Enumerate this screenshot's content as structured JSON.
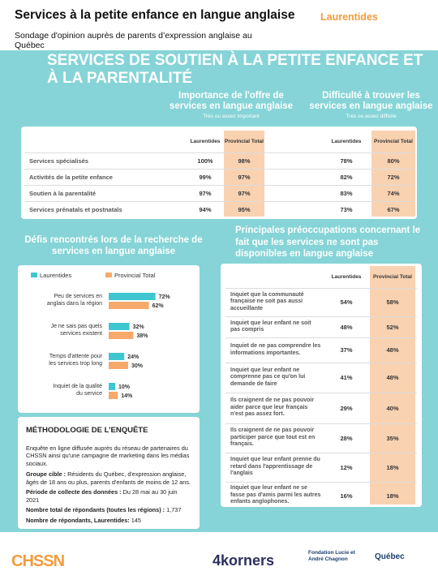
{
  "header": {
    "title": "Services à la petite enfance en langue anglaise",
    "region": "Laurentides",
    "subtitle": "Sondage d'opinion auprès de parents d’expression anglaise au Québec"
  },
  "banner": "SERVICES DE SOUTIEN À LA PETITE ENFANCE ET À LA PARENTALITÉ",
  "services_table": {
    "importance_title": "Importance de l'offre de services en langue anglaise",
    "importance_note": "Très ou assez important",
    "difficulty_title": "Difficulté à trouver les services en langue anglaise",
    "difficulty_note": "Très ou assez difficile",
    "columns": [
      "Laurentides",
      "Provincial Total"
    ],
    "rows": [
      {
        "label": "Services spécialisés",
        "importance": [
          "100%",
          "98%"
        ],
        "difficulty": [
          "78%",
          "80%"
        ]
      },
      {
        "label": "Activités de la petite enfance",
        "importance": [
          "99%",
          "97%"
        ],
        "difficulty": [
          "82%",
          "72%"
        ]
      },
      {
        "label": "Soutien à la parentalité",
        "importance": [
          "97%",
          "97%"
        ],
        "difficulty": [
          "83%",
          "74%"
        ]
      },
      {
        "label": "Services prénatals et postnatals",
        "importance": [
          "94%",
          "95%"
        ],
        "difficulty": [
          "73%",
          "67%"
        ]
      }
    ]
  },
  "challenges_chart": {
    "type": "bar",
    "title": "Défis rencontrés lors de la recherche de services en langue anglaise",
    "categories": [
      "Peu de services en anglais dans la région",
      "Je ne sais pas quels services existent",
      "Temps d'attente pour les services trop long",
      "Inquiet de la qualité du service"
    ],
    "series": [
      {
        "name": "Laurentides",
        "color": "#3ec6d1",
        "values": [
          72,
          32,
          24,
          10
        ],
        "value_labels": [
          "72%",
          "32%",
          "24%",
          "10%"
        ]
      },
      {
        "name": "Provincial Total",
        "color": "#f7a96b",
        "values": [
          62,
          38,
          30,
          14
        ],
        "value_labels": [
          "62%",
          "38%",
          "30%",
          "14%"
        ]
      }
    ]
  },
  "concerns_table": {
    "title": "Principales préoccupations concernant le fait que les services ne sont pas disponibles en langue anglaise",
    "columns": [
      "Laurentides",
      "Provincial Total"
    ],
    "rows": [
      {
        "label": "Inquiet que la communauté française ne soit pas aussi accueillante",
        "values": [
          "54%",
          "58%"
        ]
      },
      {
        "label": "Inquiet que leur enfant ne soit pas compris",
        "values": [
          "48%",
          "52%"
        ]
      },
      {
        "label": "Inquiet de ne pas comprendre les informations importantes.",
        "values": [
          "37%",
          "48%"
        ]
      },
      {
        "label": "Inquiet que leur enfant ne comprenne pas ce qu'on lui demande de faire",
        "values": [
          "41%",
          "48%"
        ]
      },
      {
        "label": "Ils craignent de ne pas pouvoir aider parce que leur français n'est pas assez fort.",
        "values": [
          "29%",
          "40%"
        ]
      },
      {
        "label": "Ils craignent de ne pas pouvoir participer parce que tout est en français.",
        "values": [
          "28%",
          "35%"
        ]
      },
      {
        "label": "Inquiet que leur enfant prenne du retard dans l'apprentissage de l'anglais",
        "values": [
          "12%",
          "18%"
        ]
      },
      {
        "label": "Inquiet que leur enfant ne se fasse pas d'amis parmi les autres enfants anglophones.",
        "values": [
          "16%",
          "18%"
        ]
      }
    ]
  },
  "methodology": {
    "title": "MÉTHODOLOGIE DE L’ENQUÊTE",
    "intro": "Enquête en ligne diffusée auprès du réseau de partenaires du CHSSN ainsi qu'une campagne de marketing dans les médias sociaux.",
    "items": [
      {
        "label": "Groupe cible :",
        "text": "Résidents du Québec, d'expression anglaise, âgés de 18 ans ou plus, parents d'enfants de moins de 12 ans."
      },
      {
        "label": "Période de collecte des données :",
        "text": "Du 28 mai au 30 juin 2021"
      },
      {
        "label": "Nombre total de répondants (toutes les régions) :",
        "text": "1,737"
      },
      {
        "label": "Nombre de répondants, Laurentides:",
        "text": "145"
      }
    ]
  },
  "footer": {
    "logos": [
      "CHSSN",
      "4korners",
      "Fondation Lucie et André Chagnon",
      "Québec"
    ]
  }
}
